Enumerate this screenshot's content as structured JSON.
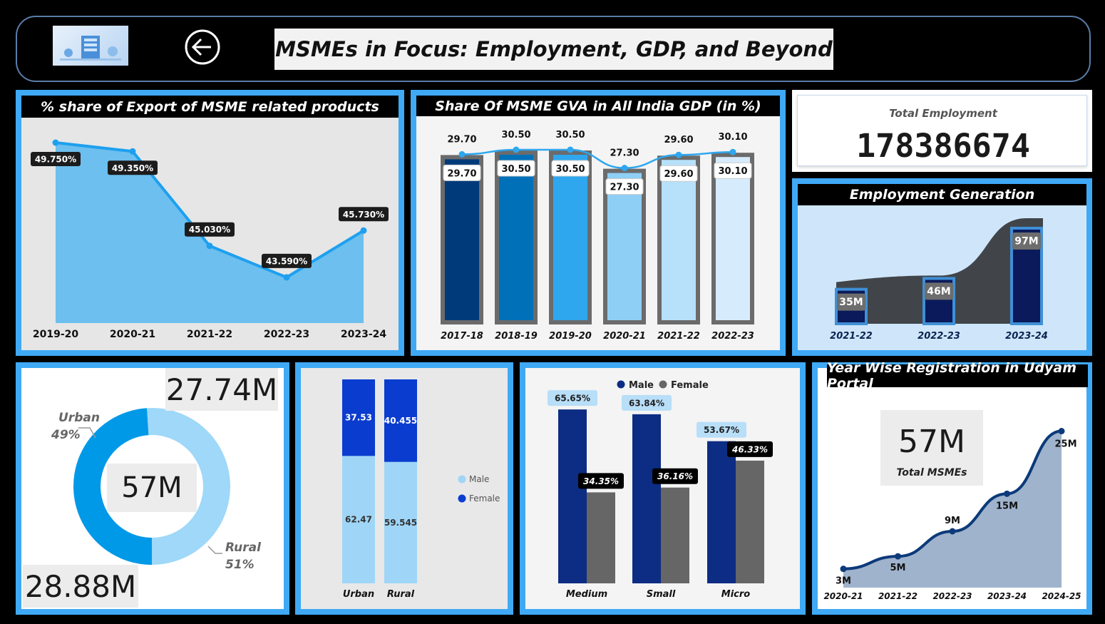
{
  "header": {
    "title": "MSMEs in Focus: Employment, GDP, and Beyond",
    "back_icon": "arrow-left-circle-icon",
    "logo_icon": "msme-logo"
  },
  "export_chart": {
    "title": "% share of Export of MSME related products",
    "chart_data": {
      "type": "area",
      "categories": [
        "2019-20",
        "2020-21",
        "2021-22",
        "2022-23",
        "2023-24"
      ],
      "values": [
        49.75,
        49.35,
        45.03,
        43.59,
        45.73
      ],
      "labels": [
        "49.750%",
        "49.350%",
        "45.030%",
        "43.590%",
        "45.730%"
      ],
      "ylim": [
        41.5,
        50.5
      ],
      "colors": {
        "line": "#1ea0ef",
        "area": "#6cbfee"
      }
    }
  },
  "gva_chart": {
    "title": "Share Of MSME GVA in All India GDP (in %)",
    "chart_data": {
      "type": "bar",
      "categories": [
        "2017-18",
        "2018-19",
        "2019-20",
        "2020-21",
        "2021-22",
        "2022-23"
      ],
      "values": [
        29.7,
        30.5,
        30.5,
        27.3,
        29.6,
        30.1
      ],
      "labels": [
        "29.70",
        "30.50",
        "30.50",
        "27.30",
        "29.60",
        "30.10"
      ],
      "line_values": [
        29.7,
        30.5,
        30.5,
        27.3,
        29.6,
        30.1
      ],
      "colors": [
        "#003a7a",
        "#0071b8",
        "#2ea7ee",
        "#8ecff5",
        "#b7e0fa",
        "#d6ecfc"
      ],
      "ylim": [
        0,
        33
      ]
    }
  },
  "total_employment": {
    "label": "Total Employment",
    "value": "178386674"
  },
  "employment_generation": {
    "title": "Employment Generation",
    "chart_data": {
      "type": "bar",
      "categories": [
        "2021-22",
        "2022-23",
        "2023-24"
      ],
      "values": [
        35,
        46,
        97
      ],
      "labels": [
        "35M",
        "46M",
        "97M"
      ],
      "ylim": [
        0,
        110
      ]
    }
  },
  "urban_rural_donut": {
    "top_value": "27.74M",
    "bottom_value": "28.88M",
    "center_value": "57M",
    "chart_data": {
      "type": "pie",
      "categories": [
        "Urban",
        "Rural"
      ],
      "values": [
        49,
        51
      ],
      "labels": [
        "49%",
        "51%"
      ],
      "colors": [
        "#0099e8",
        "#9fd8f8"
      ]
    }
  },
  "gender_stacked": {
    "chart_data": {
      "type": "bar",
      "categories": [
        "Urban",
        "Rural"
      ],
      "series": [
        {
          "name": "Male",
          "values": [
            62.47,
            59.545
          ],
          "labels": [
            "62.47",
            "59.545"
          ],
          "color": "#9fd6f7"
        },
        {
          "name": "Female",
          "values": [
            37.53,
            40.455
          ],
          "labels": [
            "37.53",
            "40.455"
          ],
          "color": "#0a3ccf"
        }
      ],
      "ylim": [
        0,
        100
      ]
    }
  },
  "gender_by_size": {
    "chart_data": {
      "type": "bar",
      "categories": [
        "Medium",
        "Small",
        "Micro"
      ],
      "series": [
        {
          "name": "Male",
          "values": [
            65.65,
            63.84,
            53.67
          ],
          "labels": [
            "65.65%",
            "63.84%",
            "53.67%"
          ],
          "color": "#0c2d83"
        },
        {
          "name": "Female",
          "values": [
            34.35,
            36.16,
            46.33
          ],
          "labels": [
            "34.35%",
            "36.16%",
            "46.33%"
          ],
          "color": "#666666"
        }
      ],
      "ylim": [
        0,
        70
      ]
    }
  },
  "udyam": {
    "title": "Year Wise Registration in Udyam Portal",
    "kpi_value": "57M",
    "kpi_label": "Total MSMEs",
    "chart_data": {
      "type": "area",
      "categories": [
        "2020-21",
        "2021-22",
        "2022-23",
        "2023-24",
        "2024-25"
      ],
      "values": [
        3,
        5,
        9,
        15,
        25
      ],
      "labels": [
        "3M",
        "5M",
        "9M",
        "15M",
        "25M"
      ],
      "ylim": [
        0,
        27
      ]
    }
  }
}
